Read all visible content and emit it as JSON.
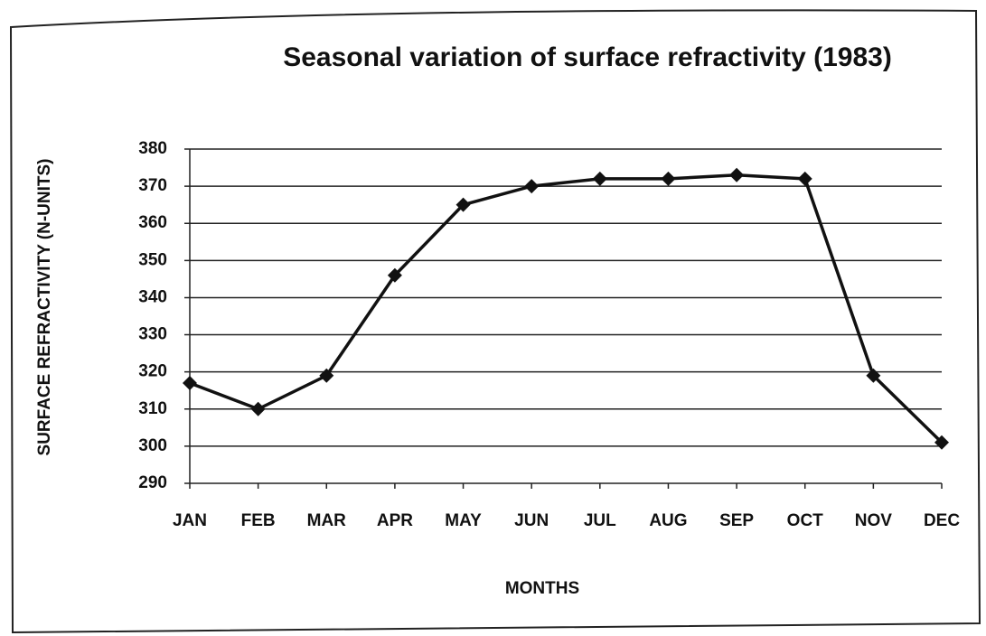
{
  "chart_data": {
    "type": "line",
    "title": "Seasonal variation of surface refractivity (1983)",
    "x_label": "MONTHS",
    "y_label": "SURFACE REFRACTIVITY (N-UNITS)",
    "categories": [
      "JAN",
      "FEB",
      "MAR",
      "APR",
      "MAY",
      "JUN",
      "JUL",
      "AUG",
      "SEP",
      "OCT",
      "NOV",
      "DEC"
    ],
    "series": [
      {
        "name": "Surface refractivity",
        "color": "#111111",
        "values": [
          317,
          310,
          319,
          346,
          365,
          370,
          372,
          372,
          373,
          372,
          319,
          301
        ]
      }
    ],
    "ylim": [
      290,
      380
    ],
    "yticks": [
      290,
      300,
      310,
      320,
      330,
      340,
      350,
      360,
      370,
      380
    ],
    "grid": true
  }
}
